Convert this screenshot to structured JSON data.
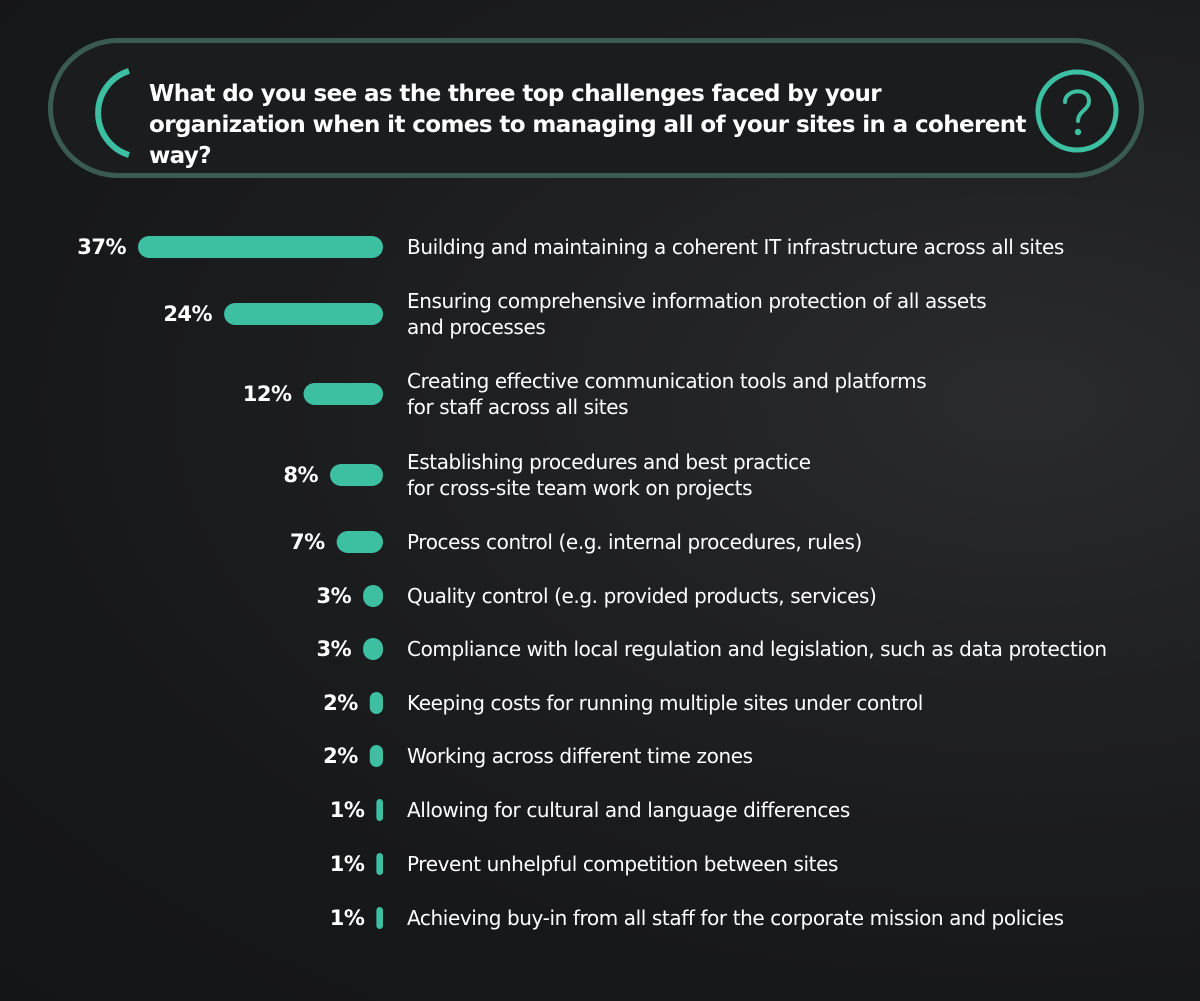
{
  "question": {
    "text": "What do you see as the three top challenges faced by your organization when it comes to managing all of your sites in a coherent way?",
    "icon": "question-mark-icon"
  },
  "colors": {
    "accent": "#3dbfa1",
    "border": "#3a5b52",
    "background": "#1b1c1e",
    "text": "#ffffff"
  },
  "chart_data": {
    "type": "bar",
    "orientation": "horizontal",
    "unit": "%",
    "categories": [
      "Building and maintaining a coherent IT infrastructure across all sites",
      "Ensuring comprehensive information protection of all assets and processes",
      "Creating effective communication tools and platforms for staff across all sites",
      "Establishing procedures and best practice for cross-site team work on projects",
      "Process control (e.g. internal procedures, rules)",
      "Quality control (e.g. provided products, services)",
      "Compliance with local regulation and legislation, such as data protection",
      "Keeping costs for running multiple sites under control",
      "Working across different time zones",
      "Allowing for cultural and language differences",
      "Prevent unhelpful competition between sites",
      "Achieving buy-in from all staff for the corporate mission and policies"
    ],
    "category_lines": [
      [
        "Building and maintaining a coherent IT infrastructure across all sites"
      ],
      [
        "Ensuring comprehensive information protection of all assets",
        "and processes"
      ],
      [
        "Creating effective communication tools and platforms",
        "for staff across all sites"
      ],
      [
        "Establishing procedures and best practice",
        "for cross-site team work on projects"
      ],
      [
        "Process control (e.g. internal procedures, rules)"
      ],
      [
        "Quality control (e.g. provided products, services)"
      ],
      [
        "Compliance with local regulation and legislation, such as data protection"
      ],
      [
        "Keeping costs for running multiple sites under control"
      ],
      [
        "Working across different time zones"
      ],
      [
        "Allowing for cultural and language differences"
      ],
      [
        "Prevent unhelpful competition between sites"
      ],
      [
        "Achieving buy-in from all staff for the corporate mission and policies"
      ]
    ],
    "values": [
      37,
      24,
      12,
      8,
      7,
      3,
      3,
      2,
      2,
      1,
      1,
      1
    ],
    "value_labels": [
      "37%",
      "24%",
      "12%",
      "8%",
      "7%",
      "3%",
      "3%",
      "2%",
      "2%",
      "1%",
      "1%",
      "1%"
    ],
    "grid": false,
    "legend": "none"
  }
}
